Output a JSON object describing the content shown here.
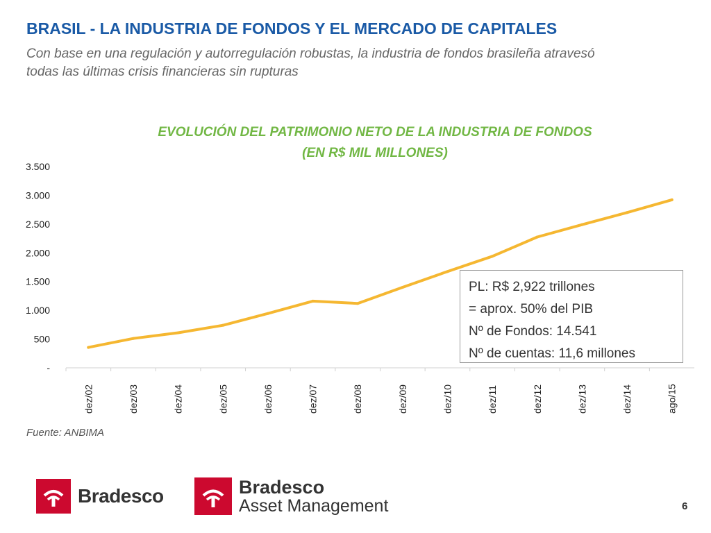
{
  "header": {
    "title": "BRASIL - LA INDUSTRIA DE FONDOS Y EL MERCADO DE CAPITALES",
    "subtitle": "Con base en una regulación y autorregulación robustas, la industria de fondos brasileña atravesó todas las últimas crisis financieras sin rupturas"
  },
  "chart_data": {
    "type": "line",
    "title_line1": "EVOLUCIÓN DEL PATRIMONIO NETO DE LA INDUSTRIA DE FONDOS",
    "title_line2": "(EN R$ MIL MILLONES)",
    "categories": [
      "dez/02",
      "dez/03",
      "dez/04",
      "dez/05",
      "dez/06",
      "dez/07",
      "dez/08",
      "dez/09",
      "dez/10",
      "dez/11",
      "dez/12",
      "dez/13",
      "dez/14",
      "ago/15"
    ],
    "series": [
      {
        "values": [
          355,
          510,
          610,
          740,
          945,
          1160,
          1120,
          1400,
          1675,
          1940,
          2275,
          2490,
          2700,
          2922
        ]
      }
    ],
    "ylim": [
      0,
      3500
    ],
    "yticks": [
      0,
      500,
      1000,
      1500,
      2000,
      2500,
      3000,
      3500
    ],
    "ytick_labels": [
      "-",
      "500",
      "1.000",
      "1.500",
      "2.000",
      "2.500",
      "3.000",
      "3.500"
    ],
    "line_color": "#f5b731",
    "grid": false
  },
  "annotation": {
    "lines": [
      "PL: R$ 2,922 trillones",
      "= aprox. 50% del PIB",
      "Nº de Fondos: 14.541",
      "Nº de cuentas: 11,6 millones"
    ]
  },
  "source": "Fuente: ANBIMA",
  "logos": {
    "bank": "Bradesco",
    "am_line1": "Bradesco",
    "am_line2": "Asset Management"
  },
  "page_number": "6",
  "colors": {
    "title": "#1a5aa6",
    "chart_title": "#71b744",
    "brand_red": "#cc092f"
  }
}
